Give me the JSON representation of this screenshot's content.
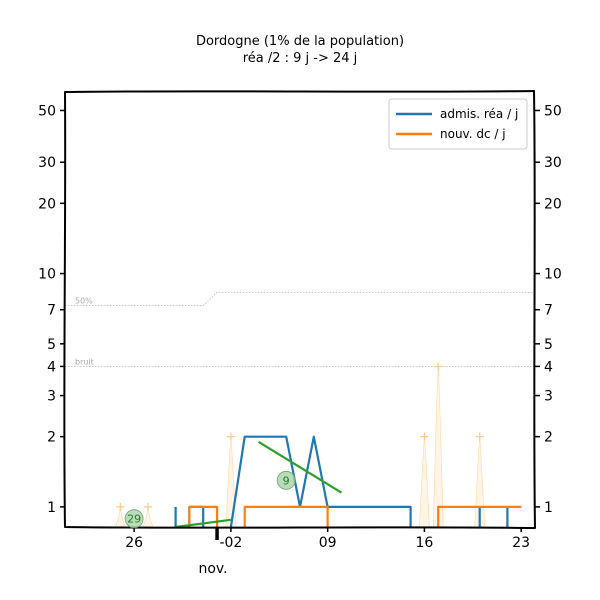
{
  "chart_data": {
    "type": "line",
    "title": "Dordogne (1% de la population)",
    "subtitle": "réa /2 : 9 j -> 24 j",
    "xlabel": "nov.",
    "yscale": "log",
    "ylim": [
      0.82,
      60
    ],
    "xlim": [
      "2020-10-21",
      "2020-11-24"
    ],
    "y_ticks": [
      {
        "value": 1,
        "label": "1"
      },
      {
        "value": 2,
        "label": "2"
      },
      {
        "value": 3,
        "label": "3"
      },
      {
        "value": 4,
        "label": "4"
      },
      {
        "value": 5,
        "label": "5"
      },
      {
        "value": 7,
        "label": "7"
      },
      {
        "value": 10,
        "label": "10"
      },
      {
        "value": 20,
        "label": "20"
      },
      {
        "value": 30,
        "label": "30"
      },
      {
        "value": 50,
        "label": "50"
      }
    ],
    "x_ticks": [
      {
        "date": "2020-10-26",
        "label": "26"
      },
      {
        "date": "2020-11-02",
        "label": "-02"
      },
      {
        "date": "2020-11-09",
        "label": "09"
      },
      {
        "date": "2020-11-16",
        "label": "16"
      },
      {
        "date": "2020-11-23",
        "label": "23"
      }
    ],
    "legend": {
      "position": "top-right",
      "entries": [
        {
          "label": "admis. réa / j",
          "color": "#1f77b4"
        },
        {
          "label": "nouv. dc / j",
          "color": "#ff7f0e"
        }
      ]
    },
    "series": [
      {
        "name": "admis. réa / j",
        "color": "#1f77b4",
        "segments": [
          [
            [
              "2020-10-29",
              1
            ],
            [
              "2020-10-29",
              0.82
            ]
          ],
          [
            [
              "2020-10-30",
              0.82
            ],
            [
              "2020-10-30",
              1
            ],
            [
              "2020-10-31",
              1
            ],
            [
              "2020-10-31",
              0.82
            ]
          ],
          [
            [
              "2020-11-02",
              0.82
            ],
            [
              "2020-11-03",
              2
            ],
            [
              "2020-11-06",
              2
            ],
            [
              "2020-11-07",
              1
            ],
            [
              "2020-11-08",
              2
            ],
            [
              "2020-11-09",
              1
            ],
            [
              "2020-11-15",
              1
            ],
            [
              "2020-11-15",
              0.82
            ]
          ],
          [
            [
              "2020-11-20",
              1
            ],
            [
              "2020-11-20",
              0.82
            ]
          ],
          [
            [
              "2020-11-22",
              0.82
            ],
            [
              "2020-11-22",
              1
            ]
          ]
        ]
      },
      {
        "name": "nouv. dc / j",
        "color": "#ff7f0e",
        "segments": [
          [
            [
              "2020-10-30",
              0.82
            ],
            [
              "2020-10-30",
              1
            ],
            [
              "2020-11-01",
              1
            ],
            [
              "2020-11-01",
              0.82
            ]
          ],
          [
            [
              "2020-11-03",
              0.82
            ],
            [
              "2020-11-03",
              1
            ],
            [
              "2020-11-09",
              1
            ],
            [
              "2020-11-09",
              0.82
            ]
          ],
          [
            [
              "2020-11-17",
              0.82
            ],
            [
              "2020-11-17",
              1
            ],
            [
              "2020-11-23",
              1
            ]
          ]
        ]
      }
    ],
    "trend_lines": [
      {
        "color": "#2ca02c",
        "points": [
          [
            "2020-10-29",
            0.82
          ],
          [
            "2020-11-02",
            0.88
          ]
        ]
      },
      {
        "color": "#2ca02c",
        "points": [
          [
            "2020-11-04",
            1.9
          ],
          [
            "2020-11-10",
            1.15
          ]
        ]
      }
    ],
    "doubling_badges": [
      {
        "label": "29",
        "x": "2020-10-26",
        "y": 0.89
      },
      {
        "label": "9",
        "x": "2020-11-06",
        "y": 1.3
      }
    ],
    "reference_lines": [
      {
        "label": "50%",
        "points": [
          [
            "2020-10-21",
            7.3
          ],
          [
            "2020-10-31",
            7.3
          ],
          [
            "2020-11-01",
            8.3
          ],
          [
            "2020-11-24",
            8.3
          ]
        ]
      },
      {
        "label": "bruit",
        "points": [
          [
            "2020-10-21",
            4
          ],
          [
            "2020-11-24",
            4
          ]
        ]
      }
    ],
    "peaks": [
      {
        "x": "2020-10-25",
        "y": 1
      },
      {
        "x": "2020-10-27",
        "y": 1
      },
      {
        "x": "2020-11-02",
        "y": 2
      },
      {
        "x": "2020-11-16",
        "y": 2
      },
      {
        "x": "2020-11-17",
        "y": 4
      },
      {
        "x": "2020-11-20",
        "y": 2
      }
    ],
    "marker": {
      "date": "2020-11-01"
    }
  }
}
